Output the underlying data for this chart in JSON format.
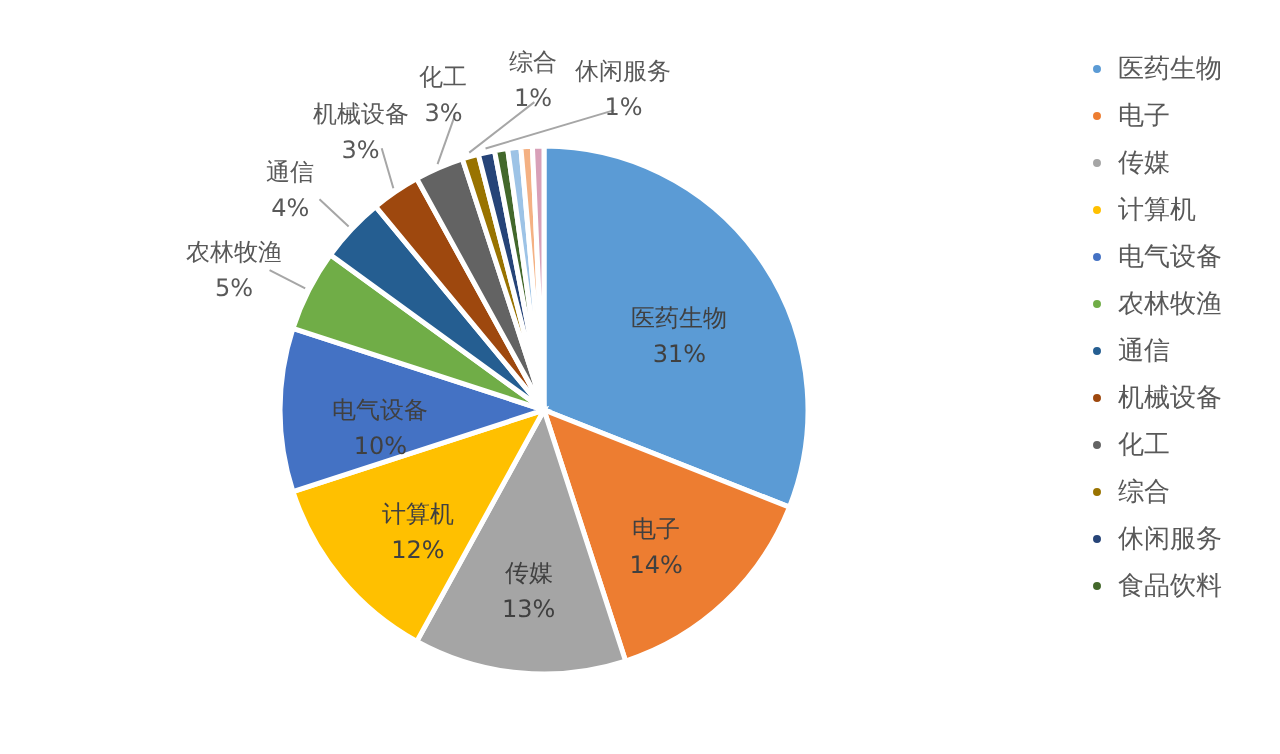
{
  "chart_data": {
    "type": "pie",
    "categories": [
      "医药生物",
      "电子",
      "传媒",
      "计算机",
      "电气设备",
      "农林牧渔",
      "通信",
      "机械设备",
      "化工",
      "综合",
      "休闲服务",
      "食品饮料",
      null,
      null,
      null
    ],
    "values": [
      31,
      14,
      13,
      12,
      10,
      5,
      4,
      3,
      3,
      1,
      1,
      0.8,
      0.8,
      0.7,
      0.7
    ],
    "value_labels": [
      "31%",
      "14%",
      "13%",
      "12%",
      "10%",
      "5%",
      "4%",
      "3%",
      "3%",
      "1%",
      "1%",
      null,
      null,
      null,
      null
    ],
    "colors": [
      "#5b9bd5",
      "#ed7d31",
      "#a5a5a5",
      "#ffc000",
      "#4472c4",
      "#70ad47",
      "#255e91",
      "#9e480e",
      "#636363",
      "#997300",
      "#264478",
      "#43682b",
      "#9dc3e6",
      "#f4b183",
      "#d8a0b8"
    ],
    "legend": "right"
  }
}
